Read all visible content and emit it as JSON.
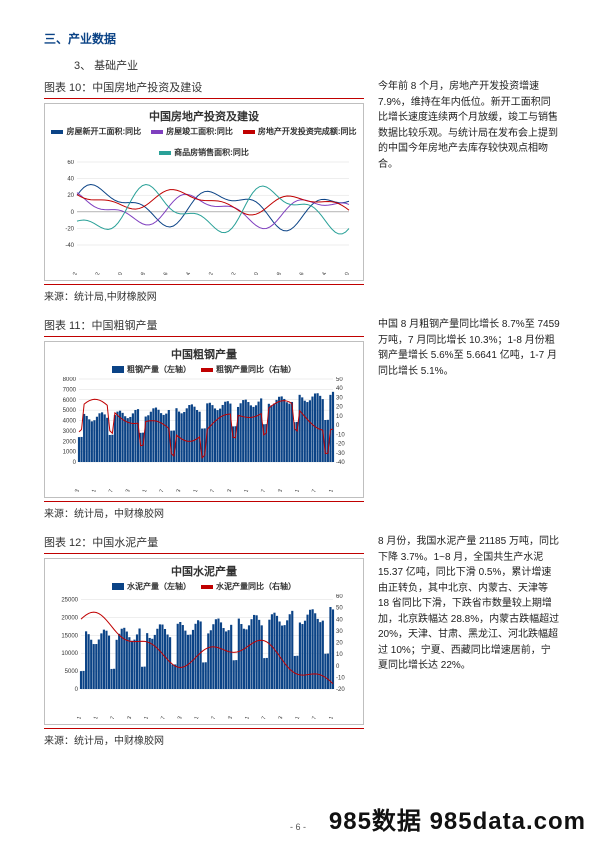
{
  "section_title": "三、产业数据",
  "sub_heading": "3、 基础产业",
  "fig10": {
    "caption": "图表 10：中国房地产投资及建设",
    "title": "中国房地产投资及建设",
    "legend": [
      {
        "label": "房屋新开工面积:同比",
        "color": "#0b4386"
      },
      {
        "label": "房屋竣工面积:同比",
        "color": "#7f3fbf"
      },
      {
        "label": "房地产开发投资完成额:同比",
        "color": "#c00000"
      },
      {
        "label": "商品房销售面积:同比",
        "color": "#2aa198"
      }
    ],
    "ylim": [
      -40,
      60
    ],
    "ytick_step": 20,
    "x_labels": [
      "2008-02",
      "2008-12",
      "2009-10",
      "2010-08",
      "2011-06",
      "2012-04",
      "2013-02",
      "2013-12",
      "2014-10",
      "2015-08",
      "2016-06",
      "2017-04",
      "2017-10"
    ],
    "source": "来源：统计局,中财橡胶网",
    "body": "今年前 8 个月，房地产开发投资增速 7.9%，维持在年内低位。新开工面积同比增长速度连续两个月放缓，竣工与销售数据比较乐观。与统计局在发布会上提到的中国今年房地产去库存较快观点相吻合。"
  },
  "fig11": {
    "caption": "图表 11：中国粗钢产量",
    "title": "中国粗钢产量",
    "legend": [
      {
        "label": "粗钢产量（左轴）",
        "color": "#0b4386",
        "type": "bar"
      },
      {
        "label": "粗钢产量同比（右轴）",
        "color": "#c00000",
        "type": "line"
      }
    ],
    "ylim_left": [
      0,
      8000
    ],
    "ytick_left": 1000,
    "ylim_right": [
      -40,
      50
    ],
    "ytick_right": 10,
    "x_labels": [
      "2008-03",
      "2008-11",
      "2009-07",
      "2010-03",
      "2010-11",
      "2011-07",
      "2012-03",
      "2012-11",
      "2013-07",
      "2014-03",
      "2014-11",
      "2015-07",
      "2016-03",
      "2016-11",
      "2017-07",
      "2017-11"
    ],
    "source": "来源：统计局，中财橡胶网",
    "body": "中国 8 月粗钢产量同比增长 8.7%至 7459 万吨，7 月同比增长 10.3%；1-8 月份粗钢产量增长 5.6%至 5.6641 亿吨，1-7 月同比增长 5.1%。"
  },
  "fig12": {
    "caption": "图表 12：中国水泥产量",
    "title": "中国水泥产量",
    "legend": [
      {
        "label": "水泥产量（左轴）",
        "color": "#0b4386",
        "type": "bar"
      },
      {
        "label": "水泥产量同比（右轴）",
        "color": "#c00000",
        "type": "line"
      }
    ],
    "ylim_left": [
      0,
      26000
    ],
    "ytick_left": 5000,
    "ylim_right": [
      -20,
      60
    ],
    "ytick_right": 10,
    "x_labels": [
      "2008-01",
      "2008-11",
      "2009-07",
      "2010-03",
      "2010-11",
      "2011-07",
      "2012-03",
      "2012-11",
      "2013-07",
      "2014-03",
      "2014-11",
      "2015-07",
      "2016-03",
      "2016-11",
      "2017-07",
      "2017-11"
    ],
    "source": "来源：统计局，中财橡胶网",
    "body": "8 月份，我国水泥产量 21185 万吨，同比下降 3.7%。1~8 月，全国共生产水泥 15.37 亿吨，同比下滑 0.5%，累计增速由正转负，其中北京、内蒙古、天津等 18 省同比下滑，下跌省市数量较上期增加，北京跌幅达 28.8%，内蒙古跌幅超过 20%，天津、甘肃、黑龙江、河北跌幅超过 10%；宁夏、西藏同比增速居前，宁夏同比增长达 22%。"
  },
  "page_footer": "- 6 -",
  "watermark": "985数据 985data.com",
  "colors": {
    "axis": "#888",
    "grid": "#dcdcdc"
  }
}
